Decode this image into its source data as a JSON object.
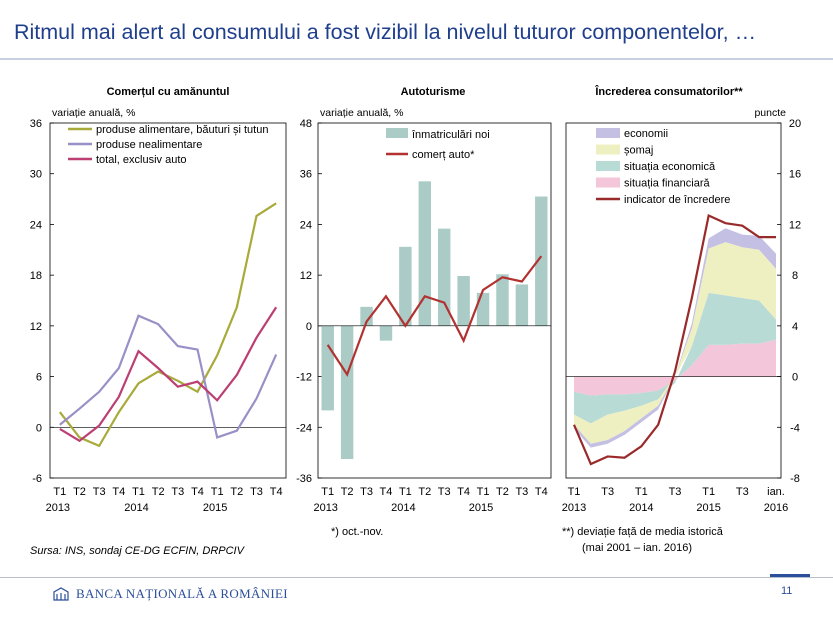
{
  "slide": {
    "title": "Ritmul mai alert al consumului a fost vizibil la nivelul tuturor componentelor, …",
    "source": "Sursa: INS, sondaj CE-DG ECFIN, DRPCIV",
    "logo_text": "BANCA NAȚIONALĂ A ROMÂNIEI",
    "page_number": "11"
  },
  "colors": {
    "title": "#1f3f8c",
    "food": "#a8aa3a",
    "nonfood": "#9a8fc6",
    "total": "#bb3f73",
    "registrations": "#aacbc6",
    "car_trade": "#b13230",
    "economy": "#c4c0e4",
    "unemployment": "#eff0c2",
    "economic_situation": "#b9dbd6",
    "financial_situation": "#f3c6d9",
    "confidence_indicator": "#9a2a2a"
  },
  "chart_data": [
    {
      "type": "line",
      "title": "Comerțul cu amănuntul",
      "ylabel": "variație anuală, %",
      "ylim": [
        -6,
        36
      ],
      "yticks": [
        "36",
        "30",
        "24",
        "18",
        "12",
        "6",
        "0",
        "-6"
      ],
      "categories": [
        "T1",
        "T2",
        "T3",
        "T4",
        "T1",
        "T2",
        "T3",
        "T4",
        "T1",
        "T2",
        "T3",
        "T4"
      ],
      "x_quarter_labels": [
        "T1",
        "T2",
        "T3",
        "T4",
        "T1",
        "T2",
        "T3",
        "T4",
        "T1",
        "T2",
        "T3",
        "T4"
      ],
      "x_year_labels": [
        "2013",
        "2014",
        "2015"
      ],
      "legend_position": "top-left",
      "series": [
        {
          "name": "produse alimentare, băuturi și tutun",
          "values": [
            1.8,
            -1.2,
            -2.2,
            1.8,
            5.2,
            6.6,
            5.5,
            4.2,
            8.5,
            14.2,
            25.0,
            26.5
          ]
        },
        {
          "name": "produse nealimentare",
          "values": [
            0.3,
            2.2,
            4.2,
            7.0,
            13.2,
            12.2,
            9.6,
            9.2,
            -1.2,
            -0.4,
            3.4,
            8.6
          ]
        },
        {
          "name": "total, exclusiv auto",
          "values": [
            -0.2,
            -1.6,
            0.2,
            3.6,
            9.0,
            7.0,
            4.8,
            5.4,
            3.2,
            6.2,
            10.6,
            14.2
          ]
        }
      ]
    },
    {
      "type": "bar",
      "title": "Autoturisme",
      "ylabel": "variație anuală, %",
      "ylim": [
        -36,
        48
      ],
      "yticks": [
        "48",
        "36",
        "24",
        "12",
        "0",
        "-12",
        "-24",
        "-36"
      ],
      "categories": [
        "T1",
        "T2",
        "T3",
        "T4",
        "T1",
        "T2",
        "T3",
        "T4",
        "T1",
        "T2",
        "T3",
        "T4"
      ],
      "x_quarter_labels": [
        "T1",
        "T2",
        "T3",
        "T4",
        "T1",
        "T2",
        "T3",
        "T4",
        "T1",
        "T2",
        "T3",
        "T4"
      ],
      "x_year_labels": [
        "2013",
        "2014",
        "2015"
      ],
      "note": "*) oct.-nov.",
      "legend_position": "top-right",
      "series": [
        {
          "name": "înmatriculări noi",
          "type": "bar",
          "values": [
            -20,
            -31.5,
            4.5,
            -3.5,
            18.7,
            34.2,
            23.0,
            11.8,
            7.8,
            12.2,
            9.8,
            30.6
          ]
        },
        {
          "name": "comerț auto*",
          "type": "line",
          "values": [
            -4.5,
            -11.5,
            1.0,
            7.0,
            0.0,
            7.0,
            5.5,
            -3.5,
            8.5,
            11.5,
            10.5,
            16.5
          ]
        }
      ]
    },
    {
      "type": "area",
      "title": "Încrederea consumatorilor**",
      "ylabel": "puncte",
      "y_axis_side": "right",
      "ylim": [
        -8,
        20
      ],
      "yticks": [
        "20",
        "16",
        "12",
        "8",
        "4",
        "0",
        "-4",
        "-8"
      ],
      "x_labels": [
        [
          "T1",
          "2013"
        ],
        [
          "T3",
          ""
        ],
        [
          "T1",
          "2014"
        ],
        [
          "T3",
          ""
        ],
        [
          "T1",
          "2015"
        ],
        [
          "T3",
          ""
        ],
        [
          "ian.",
          "2016"
        ]
      ],
      "note": "**) deviație față de media istorică (mai 2001 – ian. 2016)",
      "legend_position": "top-left",
      "x_count": 13,
      "series": [
        {
          "name": "economii",
          "values": [
            -0.3,
            -0.3,
            -0.3,
            -0.3,
            -0.3,
            -0.3,
            0.0,
            0.4,
            0.8,
            1.1,
            1.0,
            1.1,
            1.2
          ]
        },
        {
          "name": "șomaj",
          "values": [
            -0.8,
            -1.6,
            -2.0,
            -1.6,
            -1.0,
            -0.5,
            0.0,
            1.4,
            3.5,
            4.2,
            4.0,
            4.0,
            4.0
          ]
        },
        {
          "name": "situația economică",
          "values": [
            -1.8,
            -2.2,
            -1.6,
            -1.3,
            -1.0,
            -0.7,
            -0.2,
            1.5,
            4.1,
            3.9,
            3.6,
            3.4,
            1.6
          ]
        },
        {
          "name": "situația financiară",
          "values": [
            -1.2,
            -1.5,
            -1.4,
            -1.4,
            -1.3,
            -1.1,
            -0.3,
            0.9,
            2.5,
            2.5,
            2.6,
            2.6,
            2.9
          ]
        },
        {
          "name": "indicator de încredere",
          "type": "line",
          "values": [
            -3.8,
            -6.9,
            -6.3,
            -6.4,
            -5.5,
            -3.8,
            0.4,
            6.2,
            12.7,
            12.1,
            11.9,
            11.0,
            11.0
          ]
        }
      ]
    }
  ]
}
